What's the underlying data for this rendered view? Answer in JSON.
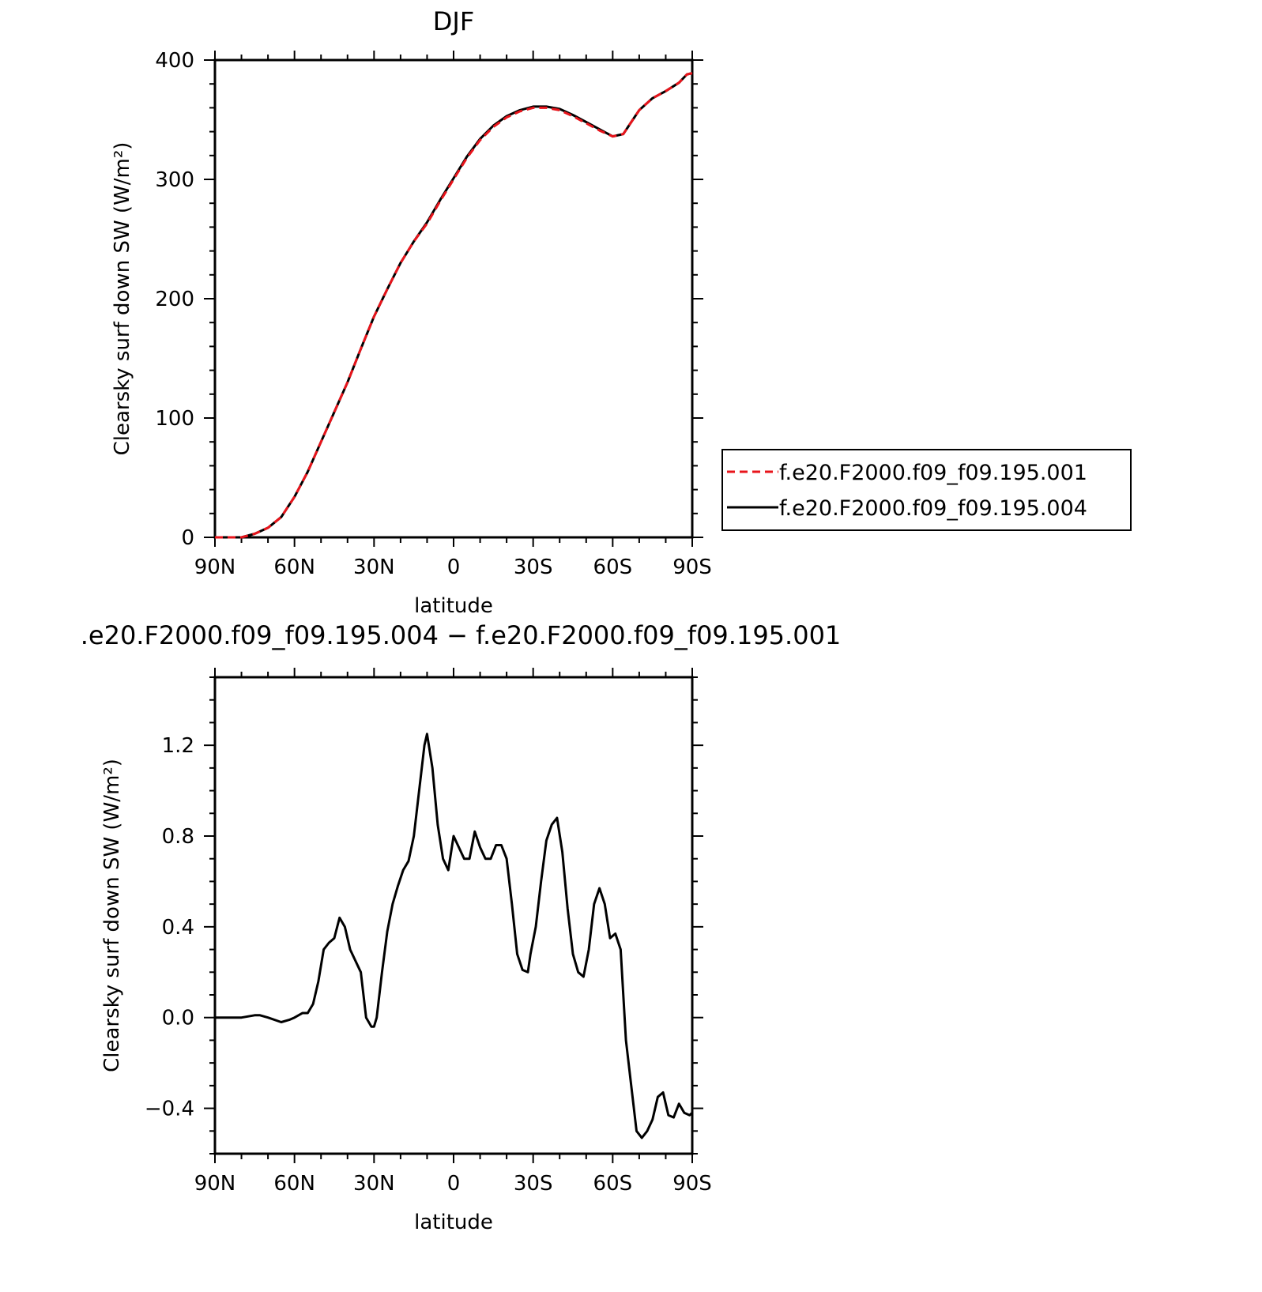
{
  "chart_data": [
    {
      "type": "line",
      "title": "DJF",
      "xlabel": "latitude",
      "ylabel": "Clearsky surf down SW (W/m²)",
      "xlim": [
        90,
        -90
      ],
      "ylim": [
        0,
        400
      ],
      "x_tick_labels": [
        "90N",
        "60N",
        "30N",
        "0",
        "30S",
        "60S",
        "90S"
      ],
      "y_tick_labels": [
        "0",
        "100",
        "200",
        "300",
        "400"
      ],
      "legend": {
        "placement": "outside-right",
        "entries": [
          {
            "label": "f.e20.F2000.f09_f09.195.001",
            "color": "#e8141b",
            "dash": "dashed"
          },
          {
            "label": "f.e20.F2000.f09_f09.195.004",
            "color": "#000000",
            "dash": "solid"
          }
        ]
      },
      "x": [
        90,
        80,
        75,
        70,
        65,
        60,
        55,
        50,
        45,
        40,
        35,
        30,
        25,
        20,
        15,
        10,
        5,
        0,
        -5,
        -10,
        -15,
        -20,
        -25,
        -30,
        -35,
        -40,
        -45,
        -50,
        -55,
        -60,
        -64,
        -67,
        -70,
        -75,
        -80,
        -85,
        -88,
        -90
      ],
      "series": [
        {
          "name": "f.e20.F2000.f09_f09.195.001",
          "values": [
            0,
            0,
            3,
            8,
            17,
            34,
            55,
            80,
            105,
            130,
            158,
            185,
            208,
            230,
            248,
            263,
            282,
            300,
            318,
            333,
            344,
            352,
            357,
            360,
            360,
            358,
            353,
            347,
            341,
            336,
            338,
            348,
            358,
            368,
            374,
            381,
            388,
            389
          ]
        },
        {
          "name": "f.e20.F2000.f09_f09.195.004",
          "values": [
            0,
            0,
            3,
            8,
            17,
            34,
            55,
            80,
            105,
            130,
            158,
            185,
            208,
            230,
            248,
            264,
            283,
            301,
            319,
            334,
            345,
            353,
            358,
            361,
            361,
            359,
            354,
            348,
            342,
            336,
            338,
            348,
            358,
            368,
            374,
            381,
            388,
            389
          ]
        }
      ]
    },
    {
      "type": "line",
      "title": ".e20.F2000.f09_f09.195.004 − f.e20.F2000.f09_f09.195.001",
      "xlabel": "latitude",
      "ylabel": "Clearsky surf down SW (W/m²)",
      "xlim": [
        90,
        -90
      ],
      "ylim": [
        -0.6,
        1.5
      ],
      "x_tick_labels": [
        "90N",
        "60N",
        "30N",
        "0",
        "30S",
        "60S",
        "90S"
      ],
      "y_tick_labels": [
        "−0.4",
        "0.0",
        "0.4",
        "0.8",
        "1.2"
      ],
      "x": [
        90,
        80,
        75,
        73,
        70,
        65,
        62,
        60,
        57,
        55,
        53,
        51,
        49,
        47,
        45,
        43,
        41,
        39,
        37,
        35,
        33,
        31,
        30,
        29,
        27,
        25,
        23,
        21,
        19,
        17,
        15,
        13,
        11,
        10,
        8,
        6,
        4,
        2,
        0,
        -2,
        -4,
        -6,
        -8,
        -10,
        -12,
        -14,
        -16,
        -18,
        -20,
        -22,
        -24,
        -26,
        -28,
        -29,
        -31,
        -33,
        -35,
        -37,
        -39,
        -41,
        -43,
        -45,
        -47,
        -49,
        -51,
        -53,
        -55,
        -57,
        -59,
        -61,
        -63,
        -65,
        -67,
        -69,
        -71,
        -73,
        -75,
        -77,
        -79,
        -81,
        -83,
        -85,
        -87,
        -89,
        -90
      ],
      "series": [
        {
          "values": [
            0,
            0,
            0.01,
            0.01,
            0,
            -0.02,
            -0.01,
            0,
            0.02,
            0.02,
            0.06,
            0.16,
            0.3,
            0.33,
            0.35,
            0.44,
            0.4,
            0.3,
            0.25,
            0.2,
            0.0,
            -0.04,
            -0.04,
            0.0,
            0.2,
            0.38,
            0.5,
            0.58,
            0.65,
            0.69,
            0.8,
            1.0,
            1.2,
            1.25,
            1.1,
            0.85,
            0.7,
            0.65,
            0.8,
            0.75,
            0.7,
            0.7,
            0.82,
            0.75,
            0.7,
            0.7,
            0.76,
            0.76,
            0.7,
            0.5,
            0.28,
            0.21,
            0.2,
            0.28,
            0.4,
            0.6,
            0.78,
            0.85,
            0.88,
            0.73,
            0.48,
            0.28,
            0.2,
            0.18,
            0.3,
            0.5,
            0.57,
            0.5,
            0.35,
            0.37,
            0.3,
            -0.1,
            -0.3,
            -0.5,
            -0.53,
            -0.5,
            -0.45,
            -0.35,
            -0.33,
            -0.43,
            -0.44,
            -0.38,
            -0.42,
            -0.43,
            -0.42
          ]
        }
      ]
    }
  ]
}
